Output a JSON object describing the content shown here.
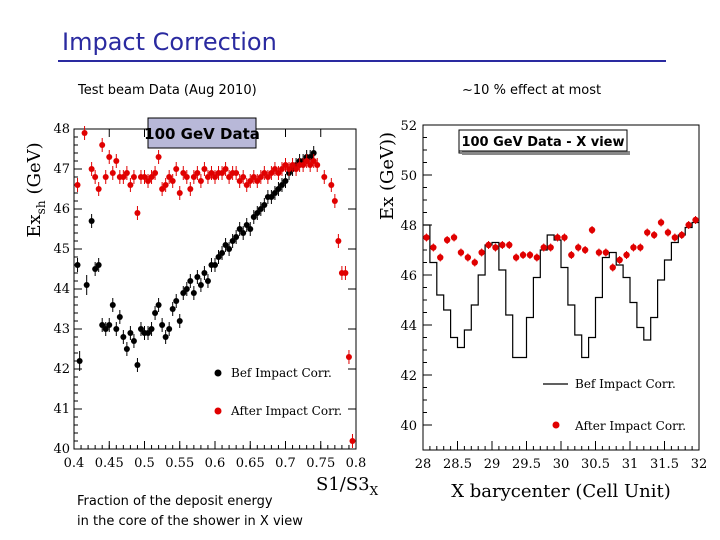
{
  "title": "Impact Correction",
  "left_subtitle": "Test beam Data (Aug 2010)",
  "right_subtitle": "~10 % effect at most",
  "caption_line1": "Fraction of the deposit energy",
  "caption_line2": "in the core of the shower in X view",
  "colors": {
    "title": "#2a2aa0",
    "before": "#000000",
    "after": "#e00000",
    "box_fill": "#b8b8d8"
  },
  "chart_data": [
    {
      "type": "scatter",
      "box_label": "100 GeV Data",
      "xlabel": "S1/S3",
      "xlabel_sub": "X",
      "ylabel": "Ex",
      "ylabel_sub": "sh",
      "ylabel_unit": "(GeV)",
      "xlim": [
        0.4,
        0.8
      ],
      "ylim": [
        40,
        48
      ],
      "x_ticks": [
        "0.4",
        "0.45",
        "0.5",
        "0.55",
        "0.6",
        "0.65",
        "0.7",
        "0.75",
        "0.8"
      ],
      "y_ticks": [
        "40",
        "41",
        "42",
        "43",
        "44",
        "45",
        "46",
        "47",
        "48"
      ],
      "legend": [
        "Bef Impact Corr.",
        "After Impact Corr."
      ],
      "series": [
        {
          "name": "Bef Impact Corr.",
          "points": [
            [
              0.405,
              44.6
            ],
            [
              0.408,
              42.2
            ],
            [
              0.418,
              44.1
            ],
            [
              0.425,
              45.7
            ],
            [
              0.43,
              44.5
            ],
            [
              0.435,
              44.6
            ],
            [
              0.44,
              43.1
            ],
            [
              0.445,
              43.0
            ],
            [
              0.45,
              43.1
            ],
            [
              0.455,
              43.6
            ],
            [
              0.46,
              43.0
            ],
            [
              0.465,
              43.3
            ],
            [
              0.47,
              42.8
            ],
            [
              0.475,
              42.5
            ],
            [
              0.48,
              42.9
            ],
            [
              0.485,
              42.7
            ],
            [
              0.49,
              42.1
            ],
            [
              0.495,
              43.0
            ],
            [
              0.5,
              42.9
            ],
            [
              0.505,
              42.9
            ],
            [
              0.51,
              43.0
            ],
            [
              0.515,
              43.4
            ],
            [
              0.52,
              43.6
            ],
            [
              0.525,
              43.1
            ],
            [
              0.53,
              42.8
            ],
            [
              0.535,
              43.0
            ],
            [
              0.54,
              43.5
            ],
            [
              0.545,
              43.7
            ],
            [
              0.55,
              43.2
            ],
            [
              0.555,
              43.9
            ],
            [
              0.56,
              44.0
            ],
            [
              0.565,
              44.2
            ],
            [
              0.57,
              43.9
            ],
            [
              0.575,
              44.3
            ],
            [
              0.58,
              44.1
            ],
            [
              0.585,
              44.4
            ],
            [
              0.59,
              44.2
            ],
            [
              0.595,
              44.6
            ],
            [
              0.6,
              44.6
            ],
            [
              0.605,
              44.8
            ],
            [
              0.61,
              44.9
            ],
            [
              0.615,
              45.1
            ],
            [
              0.62,
              45.0
            ],
            [
              0.625,
              45.2
            ],
            [
              0.63,
              45.3
            ],
            [
              0.635,
              45.5
            ],
            [
              0.64,
              45.4
            ],
            [
              0.645,
              45.6
            ],
            [
              0.65,
              45.5
            ],
            [
              0.655,
              45.8
            ],
            [
              0.66,
              45.9
            ],
            [
              0.665,
              46.0
            ],
            [
              0.67,
              46.1
            ],
            [
              0.675,
              46.3
            ],
            [
              0.68,
              46.3
            ],
            [
              0.685,
              46.4
            ],
            [
              0.69,
              46.5
            ],
            [
              0.695,
              46.6
            ],
            [
              0.7,
              46.7
            ],
            [
              0.705,
              46.9
            ],
            [
              0.71,
              47.0
            ],
            [
              0.715,
              47.1
            ],
            [
              0.72,
              47.2
            ],
            [
              0.725,
              47.2
            ],
            [
              0.73,
              47.3
            ],
            [
              0.735,
              47.3
            ],
            [
              0.74,
              47.4
            ]
          ]
        },
        {
          "name": "After Impact Corr.",
          "points": [
            [
              0.405,
              46.6
            ],
            [
              0.415,
              47.9
            ],
            [
              0.425,
              47.0
            ],
            [
              0.43,
              46.8
            ],
            [
              0.435,
              46.5
            ],
            [
              0.44,
              47.6
            ],
            [
              0.445,
              46.8
            ],
            [
              0.45,
              47.3
            ],
            [
              0.455,
              46.9
            ],
            [
              0.46,
              47.2
            ],
            [
              0.465,
              46.8
            ],
            [
              0.47,
              46.8
            ],
            [
              0.475,
              46.9
            ],
            [
              0.48,
              46.6
            ],
            [
              0.485,
              46.8
            ],
            [
              0.49,
              45.9
            ],
            [
              0.495,
              46.8
            ],
            [
              0.5,
              46.8
            ],
            [
              0.505,
              46.7
            ],
            [
              0.51,
              46.8
            ],
            [
              0.515,
              46.9
            ],
            [
              0.52,
              47.3
            ],
            [
              0.525,
              46.5
            ],
            [
              0.53,
              46.6
            ],
            [
              0.535,
              46.8
            ],
            [
              0.54,
              46.7
            ],
            [
              0.545,
              47.0
            ],
            [
              0.55,
              46.4
            ],
            [
              0.555,
              46.9
            ],
            [
              0.56,
              46.8
            ],
            [
              0.565,
              46.5
            ],
            [
              0.57,
              46.8
            ],
            [
              0.575,
              46.9
            ],
            [
              0.58,
              46.7
            ],
            [
              0.585,
              47.0
            ],
            [
              0.59,
              46.8
            ],
            [
              0.595,
              46.9
            ],
            [
              0.6,
              46.8
            ],
            [
              0.605,
              46.9
            ],
            [
              0.61,
              46.9
            ],
            [
              0.615,
              47.0
            ],
            [
              0.62,
              46.8
            ],
            [
              0.625,
              46.9
            ],
            [
              0.63,
              46.9
            ],
            [
              0.635,
              46.7
            ],
            [
              0.64,
              46.8
            ],
            [
              0.645,
              46.6
            ],
            [
              0.65,
              46.7
            ],
            [
              0.655,
              46.8
            ],
            [
              0.66,
              46.7
            ],
            [
              0.665,
              46.8
            ],
            [
              0.67,
              46.9
            ],
            [
              0.675,
              46.8
            ],
            [
              0.68,
              46.9
            ],
            [
              0.685,
              47.0
            ],
            [
              0.69,
              46.9
            ],
            [
              0.695,
              47.0
            ],
            [
              0.7,
              47.1
            ],
            [
              0.705,
              47.0
            ],
            [
              0.71,
              47.1
            ],
            [
              0.715,
              47.0
            ],
            [
              0.72,
              47.1
            ],
            [
              0.725,
              47.1
            ],
            [
              0.73,
              47.2
            ],
            [
              0.735,
              47.1
            ],
            [
              0.74,
              47.2
            ],
            [
              0.745,
              47.1
            ],
            [
              0.755,
              46.8
            ],
            [
              0.765,
              46.6
            ],
            [
              0.77,
              46.2
            ],
            [
              0.775,
              45.2
            ],
            [
              0.78,
              44.4
            ],
            [
              0.785,
              44.4
            ],
            [
              0.79,
              42.3
            ],
            [
              0.795,
              40.2
            ]
          ]
        }
      ]
    },
    {
      "type": "line",
      "box_label": "100 GeV Data - X view",
      "xlabel": "X barycenter (Cell Unit)",
      "ylabel": "Ex (GeV))",
      "xlim": [
        28,
        32
      ],
      "ylim": [
        39,
        52
      ],
      "x_ticks": [
        "28",
        "28.5",
        "29",
        "29.5",
        "30",
        "30.5",
        "31",
        "31.5",
        "32"
      ],
      "y_ticks": [
        "40",
        "42",
        "44",
        "46",
        "48",
        "50",
        "52"
      ],
      "legend": [
        "Bef Impact Corr.",
        "After Impact Corr."
      ],
      "series": [
        {
          "name": "Bef Impact Corr.",
          "x": [
            28,
            28.1,
            28.2,
            28.3,
            28.4,
            28.5,
            28.6,
            28.7,
            28.8,
            28.9,
            29,
            29.1,
            29.2,
            29.3,
            29.4,
            29.5,
            29.6,
            29.7,
            29.8,
            29.9,
            30,
            30.1,
            30.2,
            30.3,
            30.4,
            30.5,
            30.6,
            30.7,
            30.8,
            30.9,
            31,
            31.1,
            31.2,
            31.3,
            31.4,
            31.5,
            31.6,
            31.7,
            31.8,
            31.9
          ],
          "values": [
            48.0,
            46.5,
            45.2,
            44.6,
            43.5,
            43.1,
            43.8,
            44.8,
            46.0,
            47.2,
            47.3,
            46.2,
            44.4,
            42.7,
            42.7,
            44.3,
            45.9,
            47.0,
            47.6,
            47.4,
            46.3,
            44.8,
            43.6,
            42.7,
            43.5,
            45.1,
            46.7,
            46.9,
            46.4,
            45.9,
            44.9,
            43.9,
            43.4,
            44.3,
            45.8,
            46.6,
            47.3,
            47.6,
            47.9,
            48.1
          ]
        },
        {
          "name": "After Impact Corr.",
          "x": [
            28.05,
            28.15,
            28.25,
            28.35,
            28.45,
            28.55,
            28.65,
            28.75,
            28.85,
            28.95,
            29.05,
            29.15,
            29.25,
            29.35,
            29.45,
            29.55,
            29.65,
            29.75,
            29.85,
            29.95,
            30.05,
            30.15,
            30.25,
            30.35,
            30.45,
            30.55,
            30.65,
            30.75,
            30.85,
            30.95,
            31.05,
            31.15,
            31.25,
            31.35,
            31.45,
            31.55,
            31.65,
            31.75,
            31.85,
            31.95
          ],
          "values": [
            47.5,
            47.1,
            46.7,
            47.4,
            47.5,
            46.9,
            46.7,
            46.5,
            46.9,
            47.2,
            47.1,
            47.2,
            47.2,
            46.7,
            46.8,
            46.8,
            46.7,
            47.1,
            47.1,
            47.5,
            47.5,
            46.8,
            47.1,
            47.0,
            47.8,
            46.9,
            46.9,
            46.3,
            46.6,
            46.8,
            47.1,
            47.1,
            47.7,
            47.6,
            48.1,
            47.7,
            47.5,
            47.6,
            48.0,
            48.2
          ]
        }
      ]
    }
  ]
}
